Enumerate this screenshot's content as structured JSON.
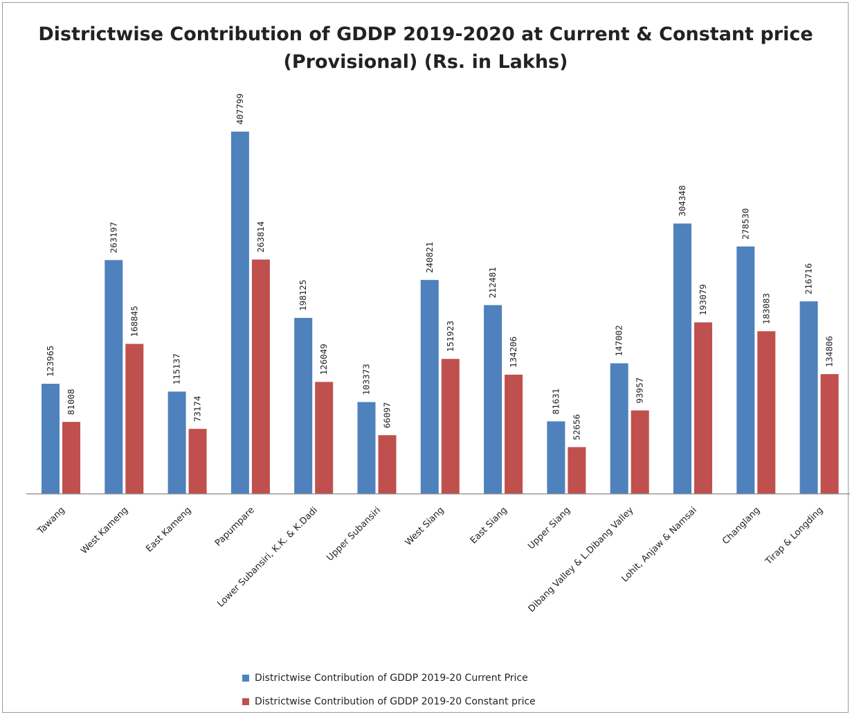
{
  "chart_data": {
    "type": "bar",
    "title": "Districtwise Contribution of GDDP 2019-2020 at Current & Constant price (Provisional) (Rs. in Lakhs)",
    "xlabel": "",
    "ylabel": "",
    "ylim": [
      0,
      410000
    ],
    "grid": false,
    "legend_position": "bottom",
    "categories": [
      "Tawang",
      "West Kameng",
      "East Kameng",
      "Papumpare",
      "Lower Subansiri, K.K. & K.Dadi",
      "Upper Subansiri",
      "West Siang",
      "East Siang",
      "Upper Siang",
      "Dibang Valley & L.Dibang Valley",
      "Lohit, Anjaw & Namsai",
      "Changlang",
      "Tirap & Longding"
    ],
    "series": [
      {
        "name": "Districtwise Contribution of GDDP 2019-20 Current Price",
        "color": "#4f81bd",
        "values": [
          123965,
          263197,
          115137,
          407799,
          198125,
          103373,
          240821,
          212481,
          81631,
          147002,
          304348,
          278530,
          216716
        ]
      },
      {
        "name": "Districtwise Contribution of GDDP 2019-20 Constant price",
        "color": "#c0504d",
        "values": [
          81008,
          168845,
          73174,
          263814,
          126049,
          66097,
          151923,
          134206,
          52656,
          93957,
          193079,
          183083,
          134806
        ]
      }
    ]
  }
}
